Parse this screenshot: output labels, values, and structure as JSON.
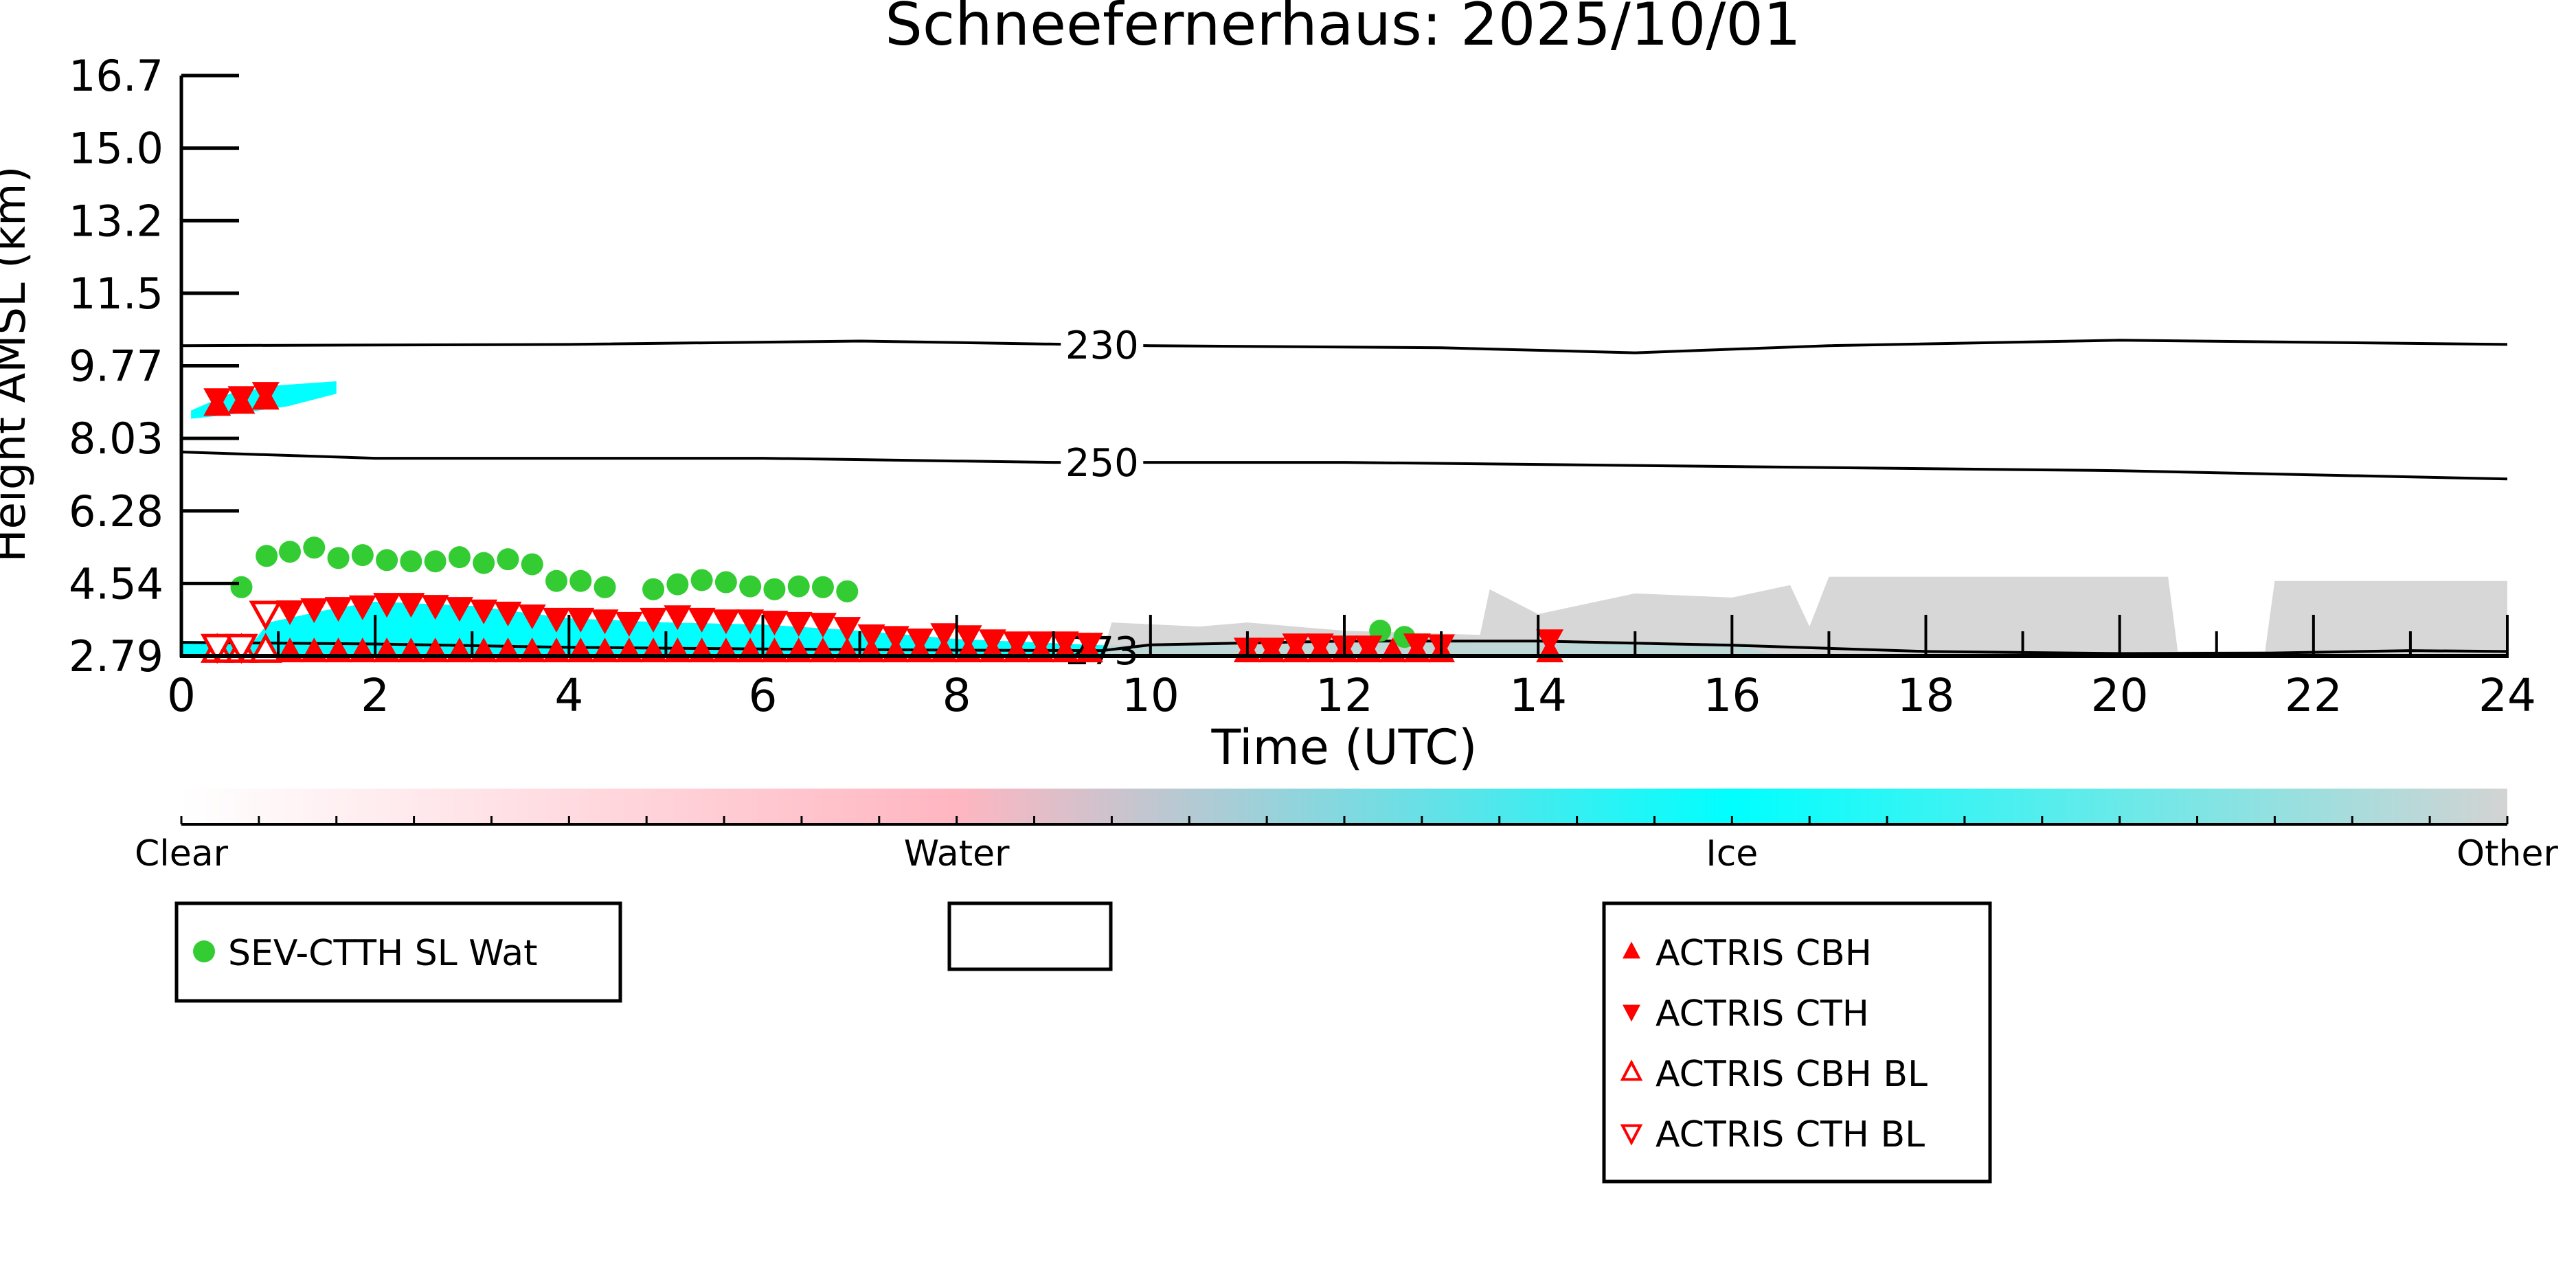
{
  "chart_data": {
    "type": "scatter",
    "title": "Schneefernerhaus: 2025/10/01",
    "xlabel": "Time (UTC)",
    "ylabel": "Height AMSL (km)",
    "xlim": [
      0,
      24
    ],
    "xticks": [
      "0",
      "2",
      "4",
      "6",
      "8",
      "10",
      "12",
      "14",
      "16",
      "18",
      "20",
      "22",
      "24"
    ],
    "yticks": [
      "2.79",
      "4.54",
      "6.28",
      "8.03",
      "9.77",
      "11.5",
      "13.2",
      "15.0",
      "16.7"
    ],
    "ytick_values": [
      2.79,
      4.54,
      6.28,
      8.03,
      9.77,
      11.5,
      13.2,
      15.0,
      16.7
    ],
    "contours": [
      {
        "label": "230",
        "label_x": 9.5,
        "points": [
          [
            0,
            10.25
          ],
          [
            4,
            10.28
          ],
          [
            7,
            10.36
          ],
          [
            10,
            10.25
          ],
          [
            13,
            10.2
          ],
          [
            15,
            10.08
          ],
          [
            17,
            10.25
          ],
          [
            20,
            10.38
          ],
          [
            24,
            10.28
          ]
        ]
      },
      {
        "label": "250",
        "label_x": 9.5,
        "points": [
          [
            0,
            7.7
          ],
          [
            2,
            7.55
          ],
          [
            6,
            7.55
          ],
          [
            9,
            7.45
          ],
          [
            12,
            7.45
          ],
          [
            16,
            7.35
          ],
          [
            20,
            7.25
          ],
          [
            24,
            7.05
          ]
        ]
      },
      {
        "label": "273",
        "label_x": 9.5,
        "points": [
          [
            0,
            3.12
          ],
          [
            2,
            3.08
          ],
          [
            4,
            3.0
          ],
          [
            6,
            2.96
          ],
          [
            8,
            2.93
          ],
          [
            9.5,
            2.92
          ],
          [
            10,
            3.06
          ],
          [
            12,
            3.15
          ],
          [
            14,
            3.15
          ],
          [
            16,
            3.05
          ],
          [
            18,
            2.9
          ],
          [
            20,
            2.85
          ],
          [
            21.5,
            2.86
          ],
          [
            23,
            2.92
          ],
          [
            24,
            2.9
          ]
        ]
      }
    ],
    "classification_regions": [
      {
        "class": "Ice",
        "color": "#00ffff",
        "points": [
          [
            0,
            2.79
          ],
          [
            0,
            3.15
          ],
          [
            0.75,
            3.15
          ],
          [
            0.9,
            3.6
          ],
          [
            1.5,
            3.9
          ],
          [
            2,
            4.1
          ],
          [
            3,
            4.0
          ],
          [
            4,
            3.7
          ],
          [
            5,
            3.6
          ],
          [
            6,
            3.55
          ],
          [
            7,
            3.4
          ],
          [
            8,
            3.2
          ],
          [
            9.5,
            3.05
          ],
          [
            10.5,
            3.05
          ],
          [
            12,
            3.2
          ],
          [
            13.3,
            3.1
          ],
          [
            16,
            3.1
          ],
          [
            16.5,
            2.79
          ]
        ]
      },
      {
        "class": "Ice",
        "color": "#00ffff",
        "points": [
          [
            0.1,
            8.7
          ],
          [
            0.5,
            9.1
          ],
          [
            1,
            9.3
          ],
          [
            1.6,
            9.4
          ],
          [
            1.6,
            9.1
          ],
          [
            1.1,
            8.8
          ],
          [
            0.5,
            8.6
          ],
          [
            0.1,
            8.5
          ]
        ]
      },
      {
        "class": "Other",
        "color": "#d3d3d3",
        "points": [
          [
            9.5,
            2.79
          ],
          [
            9.6,
            3.6
          ],
          [
            10.5,
            3.5
          ],
          [
            11,
            3.6
          ],
          [
            12,
            3.4
          ],
          [
            13.4,
            3.3
          ],
          [
            13.5,
            4.4
          ],
          [
            14,
            3.8
          ],
          [
            15,
            4.3
          ],
          [
            16,
            4.2
          ],
          [
            16.6,
            4.5
          ],
          [
            16.8,
            3.5
          ],
          [
            17,
            4.7
          ],
          [
            20.5,
            4.7
          ],
          [
            20.6,
            2.9
          ],
          [
            21.5,
            2.9
          ],
          [
            21.6,
            4.6
          ],
          [
            24,
            4.6
          ],
          [
            24,
            2.79
          ]
        ]
      }
    ],
    "series": [
      {
        "name": "SEV-CTTH SL Wat",
        "marker": "circle",
        "color": "#33cc33",
        "points": [
          [
            0.62,
            4.45
          ],
          [
            0.88,
            5.2
          ],
          [
            1.12,
            5.3
          ],
          [
            1.37,
            5.4
          ],
          [
            1.62,
            5.15
          ],
          [
            1.87,
            5.22
          ],
          [
            2.12,
            5.1
          ],
          [
            2.37,
            5.07
          ],
          [
            2.62,
            5.07
          ],
          [
            2.87,
            5.17
          ],
          [
            3.12,
            5.03
          ],
          [
            3.37,
            5.12
          ],
          [
            3.62,
            5.0
          ],
          [
            3.87,
            4.6
          ],
          [
            4.12,
            4.6
          ],
          [
            4.37,
            4.45
          ],
          [
            4.87,
            4.4
          ],
          [
            5.12,
            4.52
          ],
          [
            5.37,
            4.62
          ],
          [
            5.62,
            4.57
          ],
          [
            5.87,
            4.47
          ],
          [
            6.12,
            4.4
          ],
          [
            6.37,
            4.47
          ],
          [
            6.62,
            4.45
          ],
          [
            6.87,
            4.35
          ],
          [
            12.37,
            3.4
          ],
          [
            12.62,
            3.25
          ]
        ]
      },
      {
        "name": "ACTRIS CBH",
        "marker": "triangle-up",
        "color": "#ff0000",
        "filled": true,
        "points": [
          [
            0.37,
            8.8
          ],
          [
            0.62,
            8.85
          ],
          [
            0.87,
            8.95
          ],
          [
            1.12,
            2.87
          ],
          [
            1.37,
            2.87
          ],
          [
            1.62,
            2.87
          ],
          [
            1.87,
            2.87
          ],
          [
            2.12,
            2.87
          ],
          [
            2.37,
            2.87
          ],
          [
            2.62,
            2.87
          ],
          [
            2.87,
            2.87
          ],
          [
            3.12,
            2.87
          ],
          [
            3.37,
            2.87
          ],
          [
            3.62,
            2.87
          ],
          [
            3.87,
            2.87
          ],
          [
            4.12,
            2.87
          ],
          [
            4.37,
            2.87
          ],
          [
            4.62,
            2.87
          ],
          [
            4.87,
            2.87
          ],
          [
            5.12,
            2.87
          ],
          [
            5.37,
            2.87
          ],
          [
            5.62,
            2.87
          ],
          [
            5.87,
            2.87
          ],
          [
            6.12,
            2.87
          ],
          [
            6.37,
            2.87
          ],
          [
            6.62,
            2.87
          ],
          [
            6.87,
            2.87
          ],
          [
            7.12,
            2.87
          ],
          [
            7.37,
            2.87
          ],
          [
            7.62,
            2.87
          ],
          [
            7.87,
            2.87
          ],
          [
            8.12,
            2.87
          ],
          [
            8.37,
            2.87
          ],
          [
            8.62,
            2.87
          ],
          [
            8.87,
            2.87
          ],
          [
            9.12,
            2.87
          ],
          [
            9.37,
            2.87
          ],
          [
            11.0,
            2.87
          ],
          [
            11.25,
            2.87
          ],
          [
            11.5,
            2.87
          ],
          [
            11.75,
            2.87
          ],
          [
            12.0,
            2.87
          ],
          [
            12.25,
            2.87
          ],
          [
            12.5,
            2.87
          ],
          [
            12.75,
            2.87
          ],
          [
            13.0,
            2.87
          ],
          [
            14.12,
            2.87
          ]
        ]
      },
      {
        "name": "ACTRIS CTH",
        "marker": "triangle-down",
        "color": "#ff0000",
        "filled": true,
        "points": [
          [
            0.37,
            9.0
          ],
          [
            0.62,
            9.05
          ],
          [
            0.87,
            9.15
          ],
          [
            1.12,
            3.9
          ],
          [
            1.37,
            3.95
          ],
          [
            1.62,
            3.98
          ],
          [
            1.87,
            4.02
          ],
          [
            2.12,
            4.08
          ],
          [
            2.37,
            4.08
          ],
          [
            2.62,
            4.03
          ],
          [
            2.87,
            3.98
          ],
          [
            3.12,
            3.92
          ],
          [
            3.37,
            3.87
          ],
          [
            3.62,
            3.8
          ],
          [
            3.87,
            3.72
          ],
          [
            4.12,
            3.72
          ],
          [
            4.37,
            3.68
          ],
          [
            4.62,
            3.62
          ],
          [
            4.87,
            3.72
          ],
          [
            5.12,
            3.78
          ],
          [
            5.37,
            3.72
          ],
          [
            5.62,
            3.68
          ],
          [
            5.87,
            3.68
          ],
          [
            6.12,
            3.65
          ],
          [
            6.37,
            3.62
          ],
          [
            6.62,
            3.6
          ],
          [
            6.87,
            3.5
          ],
          [
            7.12,
            3.32
          ],
          [
            7.37,
            3.28
          ],
          [
            7.62,
            3.22
          ],
          [
            7.87,
            3.35
          ],
          [
            8.12,
            3.3
          ],
          [
            8.37,
            3.2
          ],
          [
            8.62,
            3.15
          ],
          [
            8.87,
            3.15
          ],
          [
            9.12,
            3.15
          ],
          [
            9.37,
            3.12
          ],
          [
            11.0,
            3.0
          ],
          [
            11.25,
            3.0
          ],
          [
            11.5,
            3.1
          ],
          [
            11.75,
            3.1
          ],
          [
            12.0,
            3.05
          ],
          [
            12.25,
            3.05
          ],
          [
            12.75,
            3.1
          ],
          [
            13.0,
            3.08
          ],
          [
            14.12,
            3.2
          ]
        ]
      },
      {
        "name": "ACTRIS CBH BL",
        "marker": "triangle-up",
        "color": "#ff0000",
        "filled": false,
        "points": [
          [
            0.37,
            2.9
          ],
          [
            0.62,
            2.9
          ],
          [
            0.87,
            2.9
          ]
        ]
      },
      {
        "name": "ACTRIS CTH BL",
        "marker": "triangle-down",
        "color": "#ff0000",
        "filled": false,
        "points": [
          [
            0.37,
            3.05
          ],
          [
            0.62,
            3.05
          ],
          [
            0.87,
            3.85
          ]
        ]
      }
    ],
    "colorbar": {
      "labels": [
        "Clear",
        "Water",
        "Ice",
        "Other"
      ],
      "colors": [
        "#ffffff",
        "#ffb6c1",
        "#00ffff",
        "#d3d3d3"
      ]
    },
    "legends": [
      {
        "entries": [
          "SEV-CTTH SL Wat"
        ]
      },
      {
        "entries": []
      },
      {
        "entries": [
          "ACTRIS CBH",
          "ACTRIS CTH",
          "ACTRIS CBH BL",
          "ACTRIS CTH BL"
        ]
      }
    ],
    "legend_placement": "bottom"
  }
}
